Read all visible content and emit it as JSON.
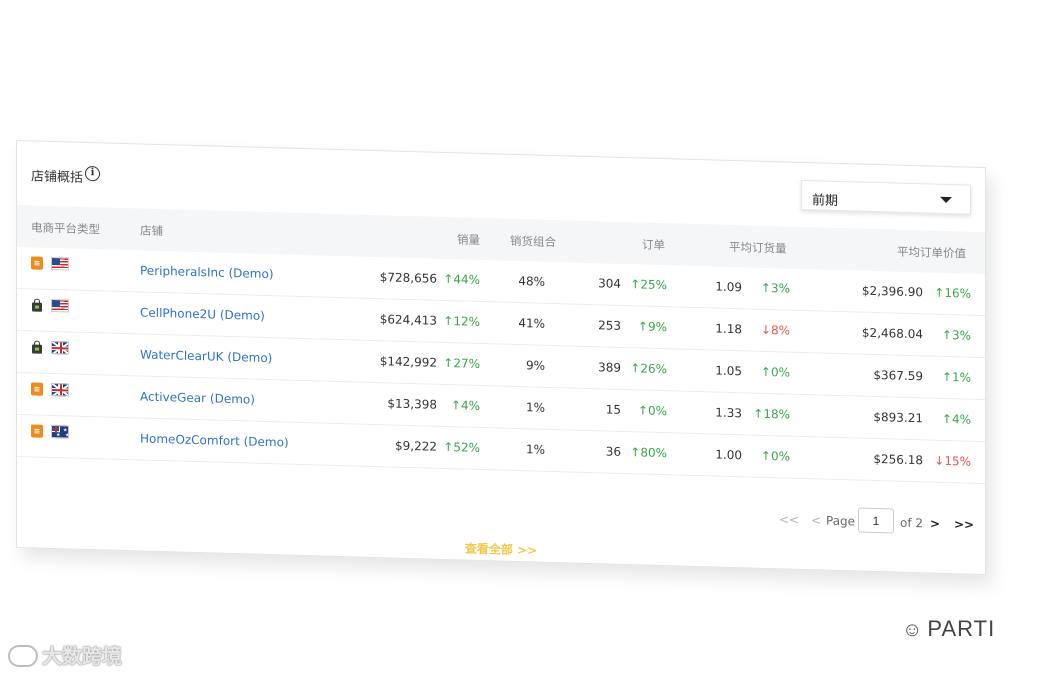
{
  "header": {
    "title": "店铺概括",
    "info_icon": "i",
    "period_value": "前期"
  },
  "columns": {
    "platform": "电商平台类型",
    "store": "店铺",
    "sales": "销量",
    "sales_mix": "销货组合",
    "orders": "订单",
    "avg_order_qty": "平均订货量",
    "avg_order_value": "平均订单价值"
  },
  "rows": [
    {
      "platform_icon": "shop-icon",
      "flag": "us-flag-icon",
      "store": "PeripheralsInc (Demo)",
      "sales": "$728,656",
      "sales_change": "↑44%",
      "sales_dir": "up",
      "mix": "48%",
      "orders": "304",
      "orders_change": "↑25%",
      "orders_dir": "up",
      "qty": "1.09",
      "qty_change": "↑3%",
      "qty_dir": "up",
      "value": "$2,396.90",
      "value_change": "↑16%",
      "value_dir": "up"
    },
    {
      "platform_icon": "bag-icon",
      "flag": "us-flag-icon",
      "store": "CellPhone2U (Demo)",
      "sales": "$624,413",
      "sales_change": "↑12%",
      "sales_dir": "up",
      "mix": "41%",
      "orders": "253",
      "orders_change": "↑9%",
      "orders_dir": "up",
      "qty": "1.18",
      "qty_change": "↓8%",
      "qty_dir": "down",
      "value": "$2,468.04",
      "value_change": "↑3%",
      "value_dir": "up"
    },
    {
      "platform_icon": "bag-icon",
      "flag": "uk-flag-icon",
      "store": "WaterClearUK (Demo)",
      "sales": "$142,992",
      "sales_change": "↑27%",
      "sales_dir": "up",
      "mix": "9%",
      "orders": "389",
      "orders_change": "↑26%",
      "orders_dir": "up",
      "qty": "1.05",
      "qty_change": "↑0%",
      "qty_dir": "up",
      "value": "$367.59",
      "value_change": "↑1%",
      "value_dir": "up"
    },
    {
      "platform_icon": "shop-icon",
      "flag": "uk-flag-icon",
      "store": "ActiveGear (Demo)",
      "sales": "$13,398",
      "sales_change": "↑4%",
      "sales_dir": "up",
      "mix": "1%",
      "orders": "15",
      "orders_change": "↑0%",
      "orders_dir": "up",
      "qty": "1.33",
      "qty_change": "↑18%",
      "qty_dir": "up",
      "value": "$893.21",
      "value_change": "↑4%",
      "value_dir": "up"
    },
    {
      "platform_icon": "shop-icon",
      "flag": "au-flag-icon",
      "store": "HomeOzComfort (Demo)",
      "sales": "$9,222",
      "sales_change": "↑52%",
      "sales_dir": "up",
      "mix": "1%",
      "orders": "36",
      "orders_change": "↑80%",
      "orders_dir": "up",
      "qty": "1.00",
      "qty_change": "↑0%",
      "qty_dir": "up",
      "value": "$256.18",
      "value_change": "↓15%",
      "value_dir": "down"
    }
  ],
  "pagination": {
    "first": "<<",
    "prev": "<",
    "page_label": "Page",
    "current_page": "1",
    "of_label": "of 2",
    "next": ">",
    "last": ">>"
  },
  "view_all": "查看全部 >>",
  "watermarks": {
    "left": "大数跨境",
    "right": "PARTI"
  },
  "colors": {
    "link": "#2f72c9",
    "up": "#3aa64a",
    "down": "#e2584b",
    "view_all": "#f1c84a",
    "shop_badge": "#f18a1d"
  }
}
